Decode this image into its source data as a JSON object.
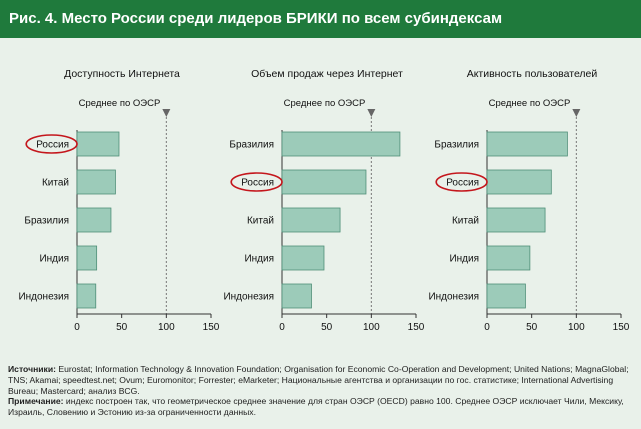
{
  "title": "Рис. 4. Место России среди лидеров БРИКИ по всем субиндексам",
  "colors": {
    "header_bg": "#1f7a3c",
    "page_bg": "#e9f1ea",
    "bar_fill": "#9ccbb9",
    "bar_stroke": "#4f8f78",
    "highlight": "#c4161c",
    "marker": "#666666"
  },
  "chart_data": [
    {
      "type": "bar",
      "orientation": "horizontal",
      "title": "Доступность Интернета",
      "reference_label": "Среднее по ОЭСР",
      "reference_value": 100,
      "categories": [
        "Россия",
        "Китай",
        "Бразилия",
        "Индия",
        "Индонезия"
      ],
      "values": [
        47,
        43,
        38,
        22,
        21
      ],
      "highlight": "Россия",
      "xlim": [
        0,
        150
      ],
      "xticks": [
        "0",
        "50",
        "100",
        "150"
      ]
    },
    {
      "type": "bar",
      "orientation": "horizontal",
      "title": "Объем продаж через Интернет",
      "reference_label": "Среднее по ОЭСР",
      "reference_value": 100,
      "categories": [
        "Бразилия",
        "Россия",
        "Китай",
        "Индия",
        "Индонезия"
      ],
      "values": [
        132,
        94,
        65,
        47,
        33
      ],
      "highlight": "Россия",
      "xlim": [
        0,
        150
      ],
      "xticks": [
        "0",
        "50",
        "100",
        "150"
      ]
    },
    {
      "type": "bar",
      "orientation": "horizontal",
      "title": "Активность пользователей",
      "reference_label": "Среднее по ОЭСР",
      "reference_value": 100,
      "categories": [
        "Бразилия",
        "Россия",
        "Китай",
        "Индия",
        "Индонезия"
      ],
      "values": [
        90,
        72,
        65,
        48,
        43
      ],
      "highlight": "Россия",
      "xlim": [
        0,
        150
      ],
      "xticks": [
        "0",
        "50",
        "100",
        "150"
      ]
    }
  ],
  "footer": {
    "sources_label": "Источники:",
    "sources_text": " Eurostat; Information Technology & Innovation Foundation; Organisation for Economic Co-Operation and Development; United Nations; MagnaGlobal; TNS; Akamai; speedtest.net; Ovum; Euromonitor; Forrester; eMarketer; Национальные агентства и организации по гос. статистике; International Advertising Bureau; Mastercard; анализ BCG.",
    "note_label": "Примечание:",
    "note_text": " индекс построен так, что геометрическое среднее значение для стран ОЭСР (OECD) равно 100. Среднее ОЭСР исключает Чили, Мексику, Израиль, Словению и Эстонию из-за ограниченности данных."
  }
}
